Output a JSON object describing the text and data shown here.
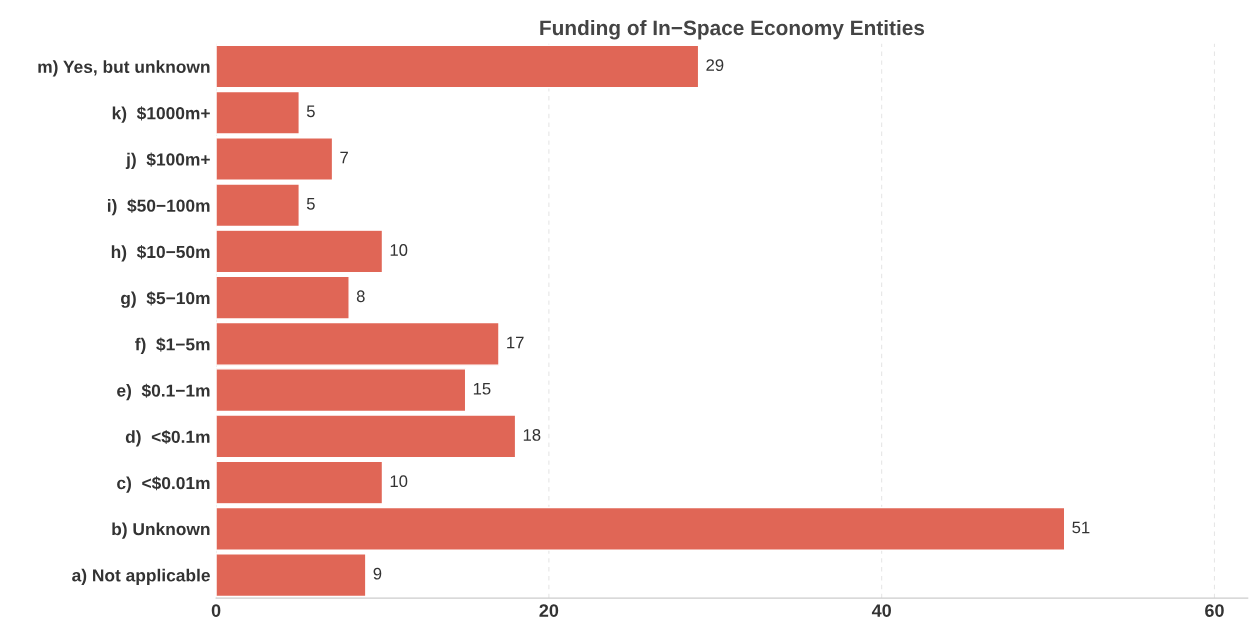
{
  "chart_data": {
    "type": "bar",
    "orientation": "horizontal",
    "title": "Funding of In−Space Economy Entities",
    "categories": [
      "m) Yes, but unknown",
      "k)  $1000m+",
      "j)  $100m+",
      "i)  $50−100m",
      "h)  $10−50m",
      "g)  $5−10m",
      "f)  $1−5m",
      "e)  $0.1−1m",
      "d)  <$0.1m",
      "c)  <$0.01m",
      "b) Unknown",
      "a) Not applicable"
    ],
    "values": [
      29,
      5,
      7,
      5,
      10,
      8,
      17,
      15,
      18,
      10,
      51,
      9
    ],
    "color": "#e06656",
    "xlim": [
      0,
      62
    ],
    "xticks": [
      0,
      20,
      40,
      60
    ],
    "grid": "x",
    "data_labels": true
  }
}
